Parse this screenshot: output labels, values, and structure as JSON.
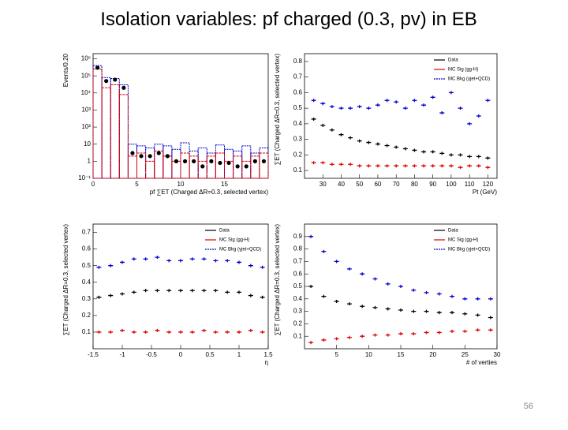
{
  "title": "Isolation variables:  pf charged (0.3, pv) in EB",
  "page_number": "56",
  "chart_data": [
    {
      "type": "histogram",
      "ylabel": "Events/0.20",
      "xlabel": "pf ∑ET (Charged ΔR=0.3, selected vertex)",
      "ylog": true,
      "xlim": [
        0,
        20
      ],
      "xticks": [
        0,
        5,
        10,
        15
      ],
      "ylim": [
        0.1,
        2000000
      ],
      "yticks": [
        {
          "value": 0.1,
          "label": "10⁻¹"
        },
        1,
        10,
        {
          "value": 100,
          "label": "10²"
        },
        {
          "value": 1000,
          "label": "10³"
        },
        {
          "value": 10000,
          "label": "10⁴"
        },
        {
          "value": 100000,
          "label": "10⁵"
        },
        {
          "value": 1000000,
          "label": "10⁶"
        }
      ],
      "bins": [
        0,
        1,
        2,
        3,
        4,
        5,
        6,
        7,
        8,
        9,
        10,
        11,
        12,
        13,
        14,
        15,
        16,
        17,
        18,
        19,
        20
      ],
      "series": [
        {
          "color": "#0000cc",
          "marker": "step",
          "values": [
            400000,
            80000,
            70000,
            30000,
            10,
            8,
            6,
            10,
            8,
            5,
            12,
            4,
            6,
            3,
            9,
            5,
            4,
            8,
            3,
            6
          ]
        },
        {
          "color": "#dd0000",
          "marker": "step",
          "values": [
            250000,
            20000,
            30000,
            8000,
            2,
            3,
            1,
            4,
            2,
            1,
            3,
            2,
            1,
            2,
            3,
            1,
            2,
            1,
            2,
            3
          ]
        },
        {
          "color": "#000000",
          "marker": "point",
          "values": [
            300000,
            50000,
            60000,
            20000,
            3,
            2,
            2,
            3,
            2,
            1,
            1,
            1,
            0.5,
            1,
            0.8,
            0.8,
            0.5,
            0.5,
            1,
            1
          ]
        }
      ]
    },
    {
      "type": "line",
      "ylabel": "∑ET (Charged ΔR=0.3, selected vertex)",
      "xlabel": "Pt (GeV)",
      "legend": "upper right",
      "xlim": [
        20,
        125
      ],
      "xticks": [
        30,
        40,
        50,
        60,
        70,
        80,
        90,
        100,
        110,
        120
      ],
      "ylim": [
        0.05,
        0.85
      ],
      "yticks": [
        0.1,
        0.2,
        0.3,
        0.4,
        0.5,
        0.6,
        0.7,
        0.8
      ],
      "x": [
        25,
        30,
        35,
        40,
        45,
        50,
        55,
        60,
        65,
        70,
        75,
        80,
        85,
        90,
        95,
        100,
        105,
        110,
        115,
        120
      ],
      "series": [
        {
          "name": "Data",
          "color": "#000000",
          "values": [
            0.43,
            0.39,
            0.36,
            0.33,
            0.31,
            0.29,
            0.28,
            0.27,
            0.26,
            0.25,
            0.24,
            0.23,
            0.22,
            0.22,
            0.21,
            0.2,
            0.2,
            0.19,
            0.19,
            0.18
          ]
        },
        {
          "name": "MC Sig (gg-H)",
          "color": "#dd0000",
          "values": [
            0.15,
            0.15,
            0.14,
            0.14,
            0.14,
            0.13,
            0.13,
            0.13,
            0.13,
            0.13,
            0.13,
            0.13,
            0.13,
            0.13,
            0.13,
            0.13,
            0.12,
            0.13,
            0.13,
            0.12
          ]
        },
        {
          "name": "MC Bkg (γjet+QCD)",
          "color": "#0000cc",
          "values": [
            0.55,
            0.53,
            0.51,
            0.5,
            0.5,
            0.51,
            0.5,
            0.52,
            0.55,
            0.54,
            0.5,
            0.55,
            0.52,
            0.57,
            0.47,
            0.6,
            0.5,
            0.4,
            0.45,
            0.55
          ]
        }
      ]
    },
    {
      "type": "line",
      "ylabel": "∑ET (Charged ΔR=0.3, selected vertex)",
      "xlabel": "η",
      "legend": "upper right",
      "xlim": [
        -1.5,
        1.5
      ],
      "xticks": [
        -1.5,
        -1,
        -0.5,
        0,
        0.5,
        1,
        1.5
      ],
      "ylim": [
        0,
        0.75
      ],
      "yticks": [
        0.1,
        0.2,
        0.3,
        0.4,
        0.5,
        0.6,
        0.7
      ],
      "x": [
        -1.4,
        -1.2,
        -1,
        -0.8,
        -0.6,
        -0.4,
        -0.2,
        0,
        0.2,
        0.4,
        0.6,
        0.8,
        1,
        1.2,
        1.4
      ],
      "series": [
        {
          "name": "Data",
          "color": "#000000",
          "values": [
            0.31,
            0.32,
            0.33,
            0.34,
            0.35,
            0.35,
            0.35,
            0.35,
            0.35,
            0.35,
            0.35,
            0.34,
            0.34,
            0.32,
            0.31
          ]
        },
        {
          "name": "MC Sig (gg-H)",
          "color": "#dd0000",
          "values": [
            0.1,
            0.1,
            0.11,
            0.1,
            0.1,
            0.11,
            0.1,
            0.1,
            0.1,
            0.11,
            0.1,
            0.1,
            0.1,
            0.11,
            0.1
          ]
        },
        {
          "name": "MC Bkg (γjet+QCD)",
          "color": "#0000cc",
          "values": [
            0.49,
            0.5,
            0.52,
            0.54,
            0.54,
            0.55,
            0.53,
            0.53,
            0.54,
            0.54,
            0.53,
            0.53,
            0.52,
            0.5,
            0.49
          ]
        }
      ]
    },
    {
      "type": "line",
      "ylabel": "∑ET (Charged ΔR=0.3, selected vertex)",
      "xlabel": "# of verties",
      "legend": "upper right",
      "xlim": [
        0,
        30
      ],
      "xticks": [
        5,
        10,
        15,
        20,
        25,
        30
      ],
      "ylim": [
        0,
        1
      ],
      "yticks": [
        0.1,
        0.2,
        0.3,
        0.4,
        0.5,
        0.6,
        0.7,
        0.8,
        0.9
      ],
      "x": [
        1,
        3,
        5,
        7,
        9,
        11,
        13,
        15,
        17,
        19,
        21,
        23,
        25,
        27,
        29
      ],
      "series": [
        {
          "name": "Data",
          "color": "#000000",
          "values": [
            0.5,
            0.42,
            0.38,
            0.36,
            0.34,
            0.33,
            0.32,
            0.31,
            0.3,
            0.3,
            0.29,
            0.29,
            0.28,
            0.27,
            0.25
          ]
        },
        {
          "name": "MC Sig (gg-H)",
          "color": "#dd0000",
          "values": [
            0.05,
            0.07,
            0.08,
            0.09,
            0.1,
            0.11,
            0.11,
            0.12,
            0.12,
            0.13,
            0.13,
            0.14,
            0.14,
            0.15,
            0.15
          ]
        },
        {
          "name": "MC Bkg (γjet+QCD)",
          "color": "#0000cc",
          "values": [
            0.9,
            0.78,
            0.7,
            0.64,
            0.6,
            0.56,
            0.52,
            0.5,
            0.47,
            0.45,
            0.44,
            0.42,
            0.4,
            0.4,
            0.4
          ]
        }
      ]
    }
  ]
}
